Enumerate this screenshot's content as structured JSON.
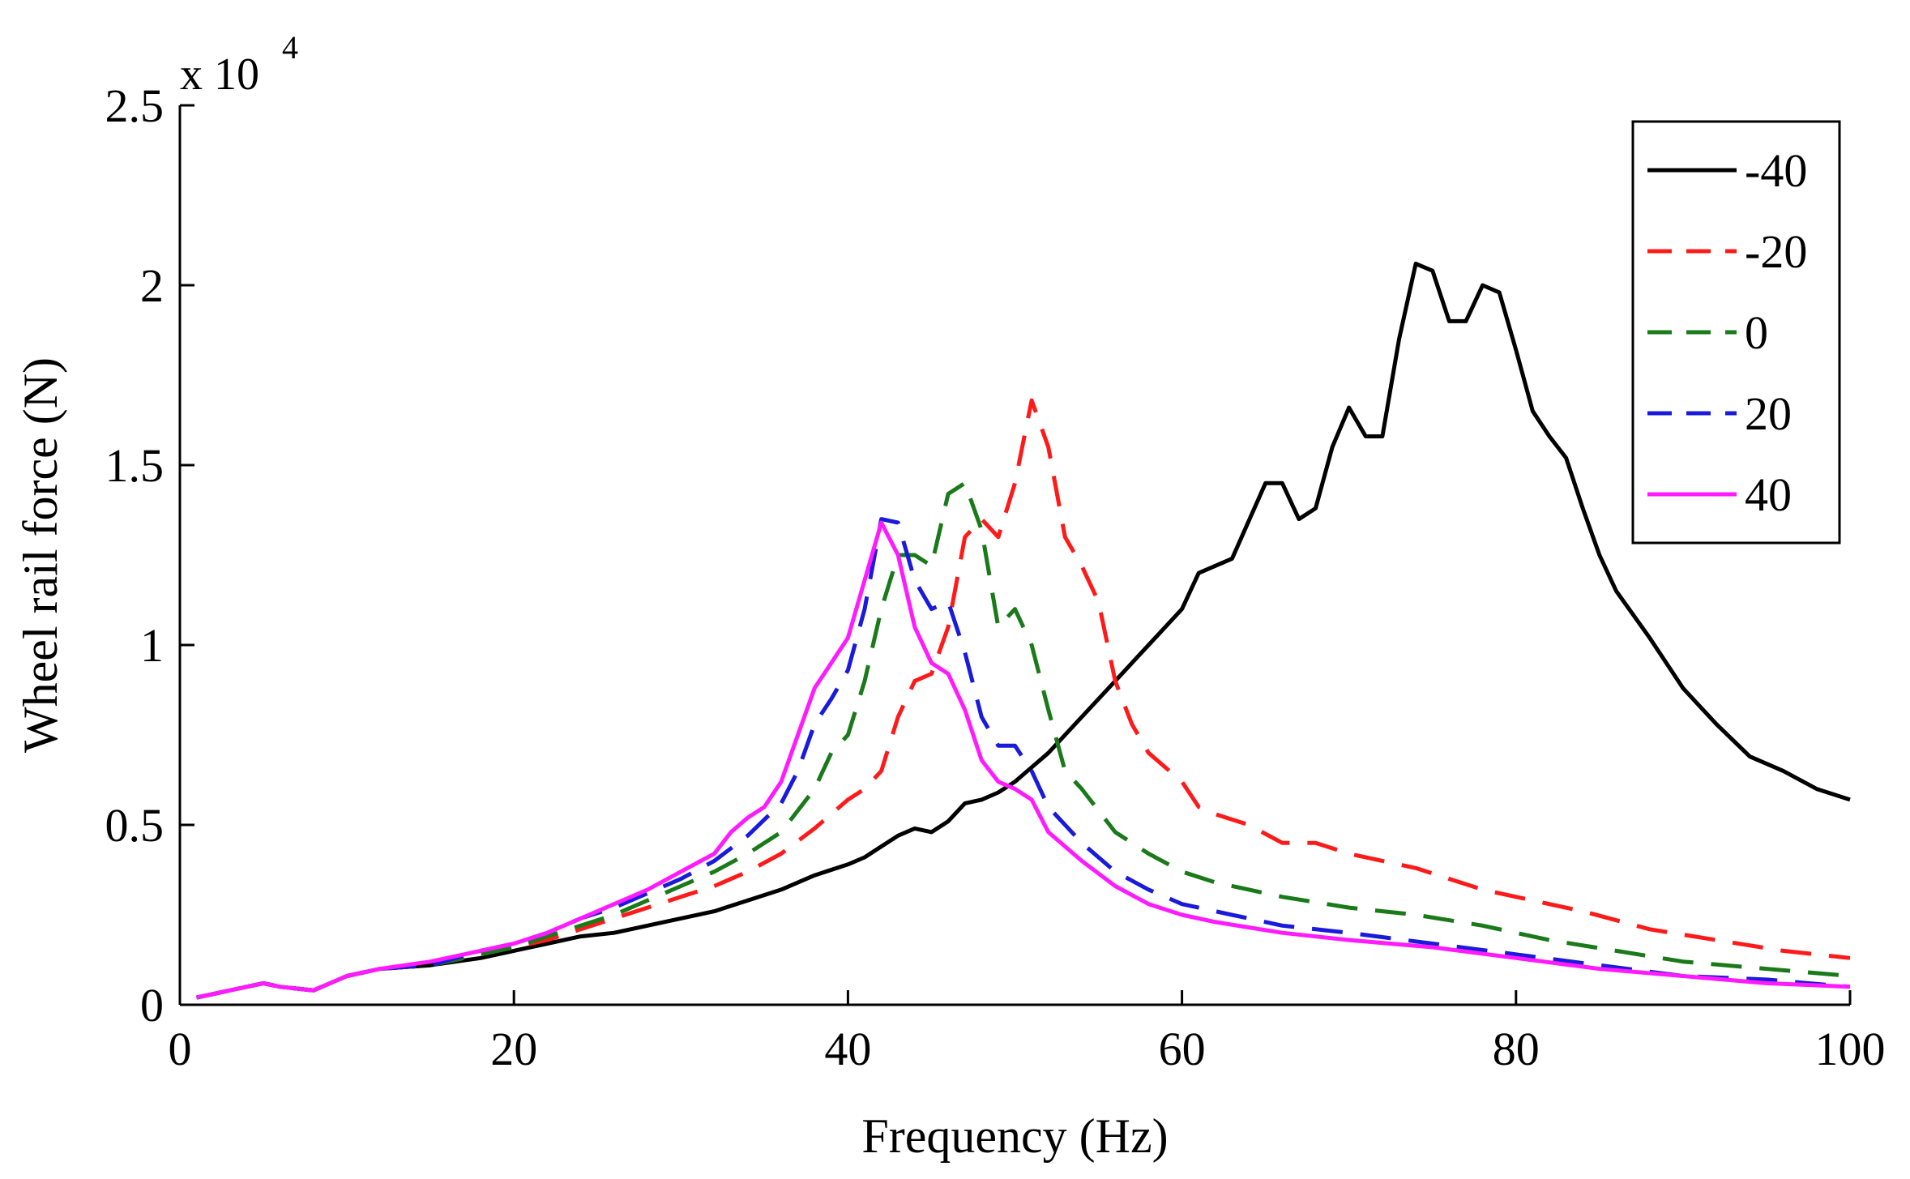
{
  "chart_data": {
    "type": "line",
    "title": "",
    "xlabel": "Frequency (Hz)",
    "ylabel": "Wheel rail force (N)",
    "y_exponent_label": "x 10",
    "y_exponent_power": "4",
    "xlim": [
      0,
      100
    ],
    "ylim": [
      0,
      2.5
    ],
    "xticks": [
      0,
      20,
      40,
      60,
      80,
      100
    ],
    "xtick_labels": [
      "0",
      "20",
      "40",
      "60",
      "80",
      "100"
    ],
    "yticks": [
      0,
      0.5,
      1,
      1.5,
      2,
      2.5
    ],
    "ytick_labels": [
      "0",
      "0.5",
      "1",
      "1.5",
      "2",
      "2.5"
    ],
    "grid": false,
    "legend_position": "top-right",
    "series": [
      {
        "name": "-40",
        "color": "#000000",
        "dash": "solid",
        "points": [
          [
            1,
            0.02
          ],
          [
            3,
            0.04
          ],
          [
            5,
            0.06
          ],
          [
            6,
            0.05
          ],
          [
            8,
            0.04
          ],
          [
            10,
            0.08
          ],
          [
            12,
            0.1
          ],
          [
            15,
            0.11
          ],
          [
            18,
            0.13
          ],
          [
            20,
            0.15
          ],
          [
            22,
            0.17
          ],
          [
            24,
            0.19
          ],
          [
            26,
            0.2
          ],
          [
            28,
            0.22
          ],
          [
            30,
            0.24
          ],
          [
            32,
            0.26
          ],
          [
            34,
            0.29
          ],
          [
            36,
            0.32
          ],
          [
            38,
            0.36
          ],
          [
            40,
            0.39
          ],
          [
            41,
            0.41
          ],
          [
            42,
            0.44
          ],
          [
            43,
            0.47
          ],
          [
            44,
            0.49
          ],
          [
            45,
            0.48
          ],
          [
            46,
            0.51
          ],
          [
            47,
            0.56
          ],
          [
            48,
            0.57
          ],
          [
            49,
            0.59
          ],
          [
            50,
            0.62
          ],
          [
            52,
            0.7
          ],
          [
            54,
            0.8
          ],
          [
            56,
            0.9
          ],
          [
            58,
            1.0
          ],
          [
            60,
            1.1
          ],
          [
            61,
            1.2
          ],
          [
            63,
            1.24
          ],
          [
            65,
            1.45
          ],
          [
            66,
            1.45
          ],
          [
            67,
            1.35
          ],
          [
            68,
            1.38
          ],
          [
            69,
            1.55
          ],
          [
            70,
            1.66
          ],
          [
            71,
            1.58
          ],
          [
            72,
            1.58
          ],
          [
            73,
            1.85
          ],
          [
            74,
            2.06
          ],
          [
            75,
            2.04
          ],
          [
            76,
            1.9
          ],
          [
            77,
            1.9
          ],
          [
            78,
            2.0
          ],
          [
            79,
            1.98
          ],
          [
            80,
            1.82
          ],
          [
            81,
            1.65
          ],
          [
            82,
            1.58
          ],
          [
            83,
            1.52
          ],
          [
            84,
            1.38
          ],
          [
            85,
            1.25
          ],
          [
            86,
            1.15
          ],
          [
            88,
            1.02
          ],
          [
            90,
            0.88
          ],
          [
            92,
            0.78
          ],
          [
            94,
            0.69
          ],
          [
            96,
            0.65
          ],
          [
            98,
            0.6
          ],
          [
            100,
            0.57
          ]
        ]
      },
      {
        "name": "-20",
        "color": "#ff1a1a",
        "dash": "dashed",
        "points": [
          [
            1,
            0.02
          ],
          [
            3,
            0.04
          ],
          [
            5,
            0.06
          ],
          [
            6,
            0.05
          ],
          [
            8,
            0.04
          ],
          [
            10,
            0.08
          ],
          [
            12,
            0.1
          ],
          [
            15,
            0.11
          ],
          [
            18,
            0.14
          ],
          [
            20,
            0.16
          ],
          [
            22,
            0.18
          ],
          [
            24,
            0.21
          ],
          [
            26,
            0.24
          ],
          [
            28,
            0.27
          ],
          [
            30,
            0.3
          ],
          [
            32,
            0.33
          ],
          [
            34,
            0.37
          ],
          [
            36,
            0.42
          ],
          [
            38,
            0.49
          ],
          [
            40,
            0.57
          ],
          [
            41,
            0.6
          ],
          [
            42,
            0.65
          ],
          [
            43,
            0.8
          ],
          [
            44,
            0.9
          ],
          [
            45,
            0.92
          ],
          [
            46,
            1.05
          ],
          [
            47,
            1.3
          ],
          [
            48,
            1.35
          ],
          [
            49,
            1.3
          ],
          [
            50,
            1.45
          ],
          [
            51,
            1.68
          ],
          [
            52,
            1.55
          ],
          [
            53,
            1.3
          ],
          [
            54,
            1.22
          ],
          [
            55,
            1.12
          ],
          [
            56,
            0.9
          ],
          [
            57,
            0.78
          ],
          [
            58,
            0.7
          ],
          [
            60,
            0.62
          ],
          [
            61,
            0.55
          ],
          [
            62,
            0.53
          ],
          [
            64,
            0.5
          ],
          [
            66,
            0.45
          ],
          [
            68,
            0.45
          ],
          [
            70,
            0.42
          ],
          [
            72,
            0.4
          ],
          [
            74,
            0.38
          ],
          [
            76,
            0.35
          ],
          [
            78,
            0.32
          ],
          [
            80,
            0.3
          ],
          [
            84,
            0.26
          ],
          [
            88,
            0.21
          ],
          [
            92,
            0.18
          ],
          [
            96,
            0.15
          ],
          [
            100,
            0.13
          ]
        ]
      },
      {
        "name": "0",
        "color": "#1a7a1a",
        "dash": "dashed",
        "points": [
          [
            1,
            0.02
          ],
          [
            3,
            0.04
          ],
          [
            5,
            0.06
          ],
          [
            6,
            0.05
          ],
          [
            8,
            0.04
          ],
          [
            10,
            0.08
          ],
          [
            12,
            0.1
          ],
          [
            15,
            0.11
          ],
          [
            18,
            0.14
          ],
          [
            20,
            0.16
          ],
          [
            22,
            0.19
          ],
          [
            24,
            0.22
          ],
          [
            26,
            0.25
          ],
          [
            28,
            0.29
          ],
          [
            30,
            0.33
          ],
          [
            32,
            0.37
          ],
          [
            34,
            0.42
          ],
          [
            36,
            0.48
          ],
          [
            38,
            0.6
          ],
          [
            39,
            0.7
          ],
          [
            40,
            0.75
          ],
          [
            41,
            0.9
          ],
          [
            42,
            1.1
          ],
          [
            43,
            1.25
          ],
          [
            44,
            1.25
          ],
          [
            45,
            1.22
          ],
          [
            46,
            1.42
          ],
          [
            47,
            1.45
          ],
          [
            48,
            1.32
          ],
          [
            49,
            1.05
          ],
          [
            50,
            1.1
          ],
          [
            51,
            1.0
          ],
          [
            52,
            0.82
          ],
          [
            53,
            0.65
          ],
          [
            54,
            0.6
          ],
          [
            56,
            0.48
          ],
          [
            58,
            0.42
          ],
          [
            60,
            0.37
          ],
          [
            62,
            0.34
          ],
          [
            66,
            0.3
          ],
          [
            70,
            0.27
          ],
          [
            74,
            0.25
          ],
          [
            78,
            0.22
          ],
          [
            82,
            0.18
          ],
          [
            86,
            0.15
          ],
          [
            90,
            0.12
          ],
          [
            95,
            0.1
          ],
          [
            100,
            0.08
          ]
        ]
      },
      {
        "name": "20",
        "color": "#1a1adc",
        "dash": "dashed",
        "points": [
          [
            1,
            0.02
          ],
          [
            3,
            0.04
          ],
          [
            5,
            0.06
          ],
          [
            6,
            0.05
          ],
          [
            8,
            0.04
          ],
          [
            10,
            0.08
          ],
          [
            12,
            0.1
          ],
          [
            15,
            0.11
          ],
          [
            18,
            0.15
          ],
          [
            20,
            0.17
          ],
          [
            22,
            0.2
          ],
          [
            24,
            0.24
          ],
          [
            26,
            0.27
          ],
          [
            28,
            0.31
          ],
          [
            30,
            0.35
          ],
          [
            32,
            0.4
          ],
          [
            34,
            0.47
          ],
          [
            36,
            0.56
          ],
          [
            37,
            0.65
          ],
          [
            38,
            0.78
          ],
          [
            39,
            0.85
          ],
          [
            40,
            0.93
          ],
          [
            41,
            1.1
          ],
          [
            42,
            1.35
          ],
          [
            43,
            1.34
          ],
          [
            44,
            1.18
          ],
          [
            45,
            1.1
          ],
          [
            46,
            1.12
          ],
          [
            47,
            0.98
          ],
          [
            48,
            0.8
          ],
          [
            49,
            0.72
          ],
          [
            50,
            0.72
          ],
          [
            51,
            0.65
          ],
          [
            52,
            0.55
          ],
          [
            54,
            0.45
          ],
          [
            56,
            0.37
          ],
          [
            58,
            0.32
          ],
          [
            60,
            0.28
          ],
          [
            62,
            0.26
          ],
          [
            66,
            0.22
          ],
          [
            70,
            0.2
          ],
          [
            75,
            0.17
          ],
          [
            80,
            0.14
          ],
          [
            85,
            0.11
          ],
          [
            90,
            0.08
          ],
          [
            95,
            0.07
          ],
          [
            100,
            0.05
          ]
        ]
      },
      {
        "name": "40",
        "color": "#ff1aff",
        "dash": "solid",
        "points": [
          [
            1,
            0.02
          ],
          [
            3,
            0.04
          ],
          [
            5,
            0.06
          ],
          [
            6,
            0.05
          ],
          [
            8,
            0.04
          ],
          [
            10,
            0.08
          ],
          [
            12,
            0.1
          ],
          [
            15,
            0.12
          ],
          [
            18,
            0.15
          ],
          [
            20,
            0.17
          ],
          [
            22,
            0.2
          ],
          [
            24,
            0.24
          ],
          [
            26,
            0.28
          ],
          [
            28,
            0.32
          ],
          [
            30,
            0.37
          ],
          [
            32,
            0.42
          ],
          [
            33,
            0.48
          ],
          [
            34,
            0.52
          ],
          [
            35,
            0.55
          ],
          [
            36,
            0.62
          ],
          [
            37,
            0.75
          ],
          [
            38,
            0.88
          ],
          [
            39,
            0.95
          ],
          [
            40,
            1.02
          ],
          [
            41,
            1.18
          ],
          [
            42,
            1.34
          ],
          [
            43,
            1.25
          ],
          [
            44,
            1.05
          ],
          [
            45,
            0.95
          ],
          [
            46,
            0.92
          ],
          [
            47,
            0.82
          ],
          [
            48,
            0.68
          ],
          [
            49,
            0.62
          ],
          [
            50,
            0.6
          ],
          [
            51,
            0.57
          ],
          [
            52,
            0.48
          ],
          [
            54,
            0.4
          ],
          [
            56,
            0.33
          ],
          [
            58,
            0.28
          ],
          [
            60,
            0.25
          ],
          [
            62,
            0.23
          ],
          [
            66,
            0.2
          ],
          [
            70,
            0.18
          ],
          [
            75,
            0.16
          ],
          [
            80,
            0.13
          ],
          [
            85,
            0.1
          ],
          [
            90,
            0.08
          ],
          [
            95,
            0.06
          ],
          [
            100,
            0.05
          ]
        ]
      }
    ]
  }
}
